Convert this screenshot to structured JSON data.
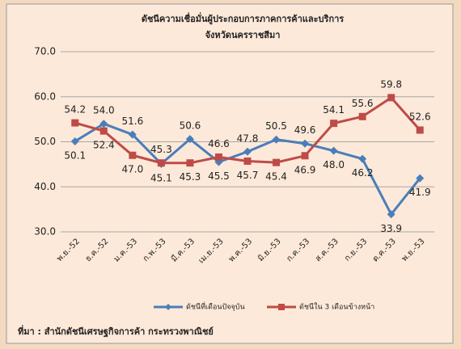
{
  "chart_data": {
    "type": "line",
    "title": "ดัชนีความเชื่อมั่นผู้ประกอบการภาคการค้าและบริการ",
    "subtitle": "จังหวัดนครราชสีมา",
    "categories": [
      "พ.ย.-52",
      "ธ.ค.-52",
      "ม.ค.-53",
      "ก.พ.-53",
      "มี.ค.-53",
      "เม.ย.-53",
      "พ.ค.-53",
      "มิ.ย.-53",
      "ก.ค.-53",
      "ส.ค.-53",
      "ก.ย.-53",
      "ต.ค.-53",
      "พ.ย.-53"
    ],
    "series": [
      {
        "name": "ดัชนีที่เดือนปัจจุบัน",
        "color": "#4a7ebb",
        "marker": "diamond",
        "values": [
          50.1,
          54.0,
          51.6,
          45.1,
          50.6,
          45.5,
          47.8,
          50.5,
          49.6,
          48.0,
          46.2,
          33.9,
          41.9
        ],
        "value_labels": [
          "50.1",
          "54.0",
          "51.6",
          "45.1",
          "50.6",
          "45.5",
          "47.8",
          "50.5",
          "49.6",
          "48.0",
          "46.2",
          "33.9",
          "41.9"
        ]
      },
      {
        "name": "ดัชนีใน 3 เดือนข้างหน้า",
        "color": "#be4b48",
        "marker": "square",
        "values": [
          54.2,
          52.4,
          47.0,
          45.3,
          45.3,
          46.6,
          45.7,
          45.4,
          46.9,
          54.1,
          55.6,
          59.8,
          52.6
        ],
        "value_labels": [
          "54.2",
          "52.4",
          "47.0",
          "45.3",
          "45.3",
          "46.6",
          "45.7",
          "45.4",
          "46.9",
          "54.1",
          "55.6",
          "59.8",
          "52.6"
        ]
      }
    ],
    "ylim": [
      30,
      70
    ],
    "yticks": [
      {
        "value": 30,
        "label": "30.0"
      },
      {
        "value": 40,
        "label": "40.0"
      },
      {
        "value": 50,
        "label": "50.0"
      },
      {
        "value": 60,
        "label": "60.0"
      },
      {
        "value": 70,
        "label": "70.0"
      }
    ],
    "grid": true,
    "legend": "bottom",
    "source": "ที่มา : สำนักดัชนีเศรษฐกิจการค้า กระทรวงพาณิชย์"
  }
}
